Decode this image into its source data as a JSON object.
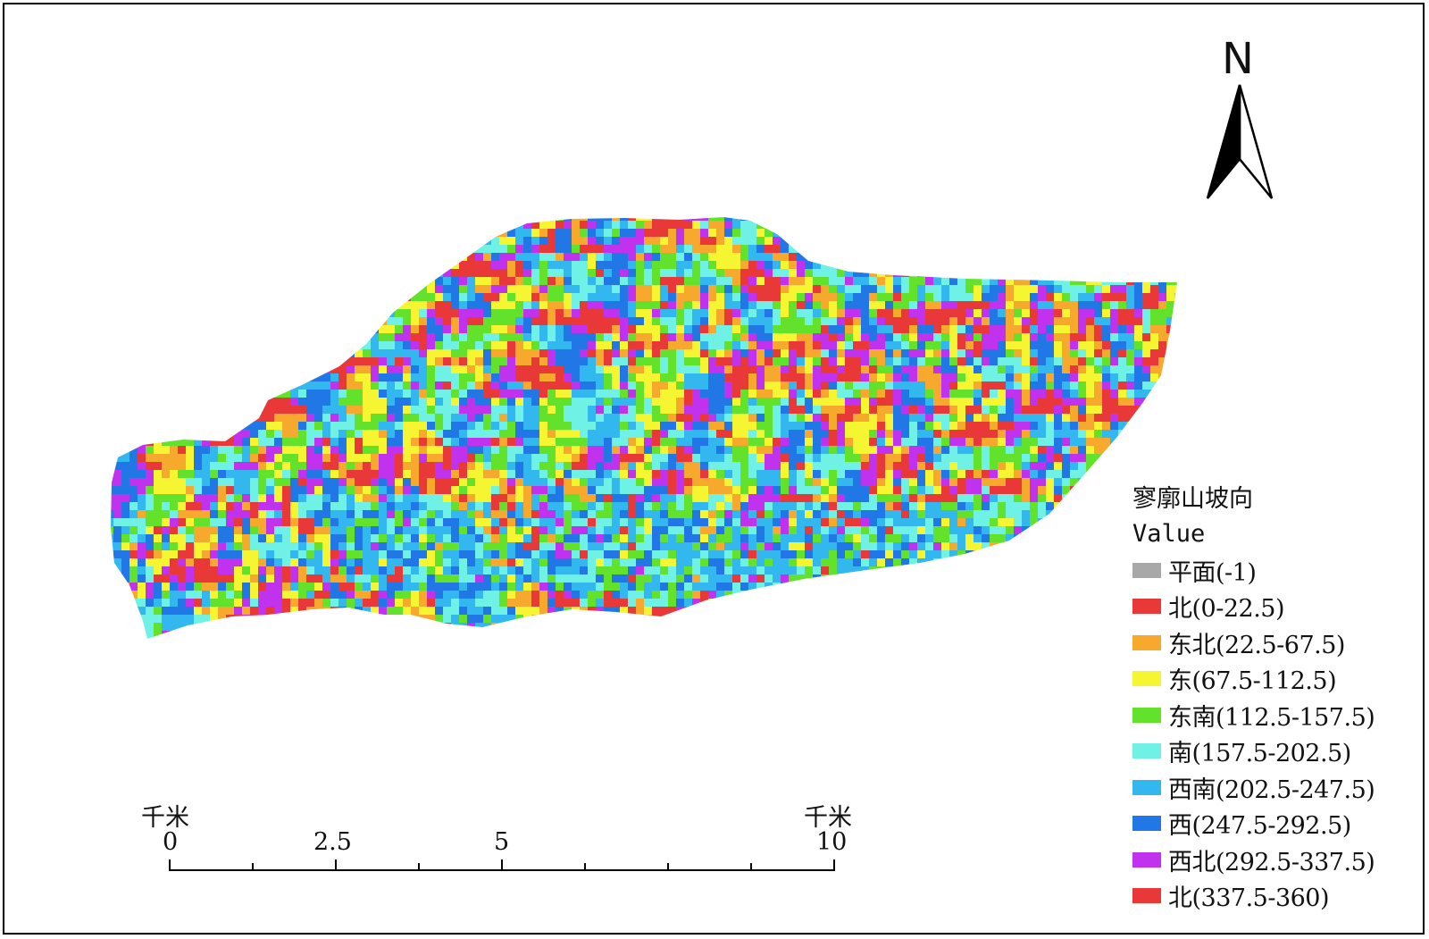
{
  "map": {
    "north_label": "N",
    "legend": {
      "title": "寥廓山坡向",
      "subtitle": "Value",
      "items": [
        {
          "label": "平面(-1)",
          "color": "#a8a8a8"
        },
        {
          "label": "北(0-22.5)",
          "color": "#e93838"
        },
        {
          "label": "东北(22.5-67.5)",
          "color": "#f6a92c"
        },
        {
          "label": "东(67.5-112.5)",
          "color": "#f6f532"
        },
        {
          "label": "东南(112.5-157.5)",
          "color": "#63e22c"
        },
        {
          "label": "南(157.5-202.5)",
          "color": "#6ff1e6"
        },
        {
          "label": "西南(202.5-247.5)",
          "color": "#32b7ee"
        },
        {
          "label": "西(247.5-292.5)",
          "color": "#2177e5"
        },
        {
          "label": "西北(292.5-337.5)",
          "color": "#c032ee"
        },
        {
          "label": "北(337.5-360)",
          "color": "#e93838"
        }
      ]
    },
    "scale_bar": {
      "unit_left": "千米",
      "unit_right": "千米",
      "ticks": [
        "0",
        "2.5",
        "5",
        "10"
      ]
    }
  }
}
